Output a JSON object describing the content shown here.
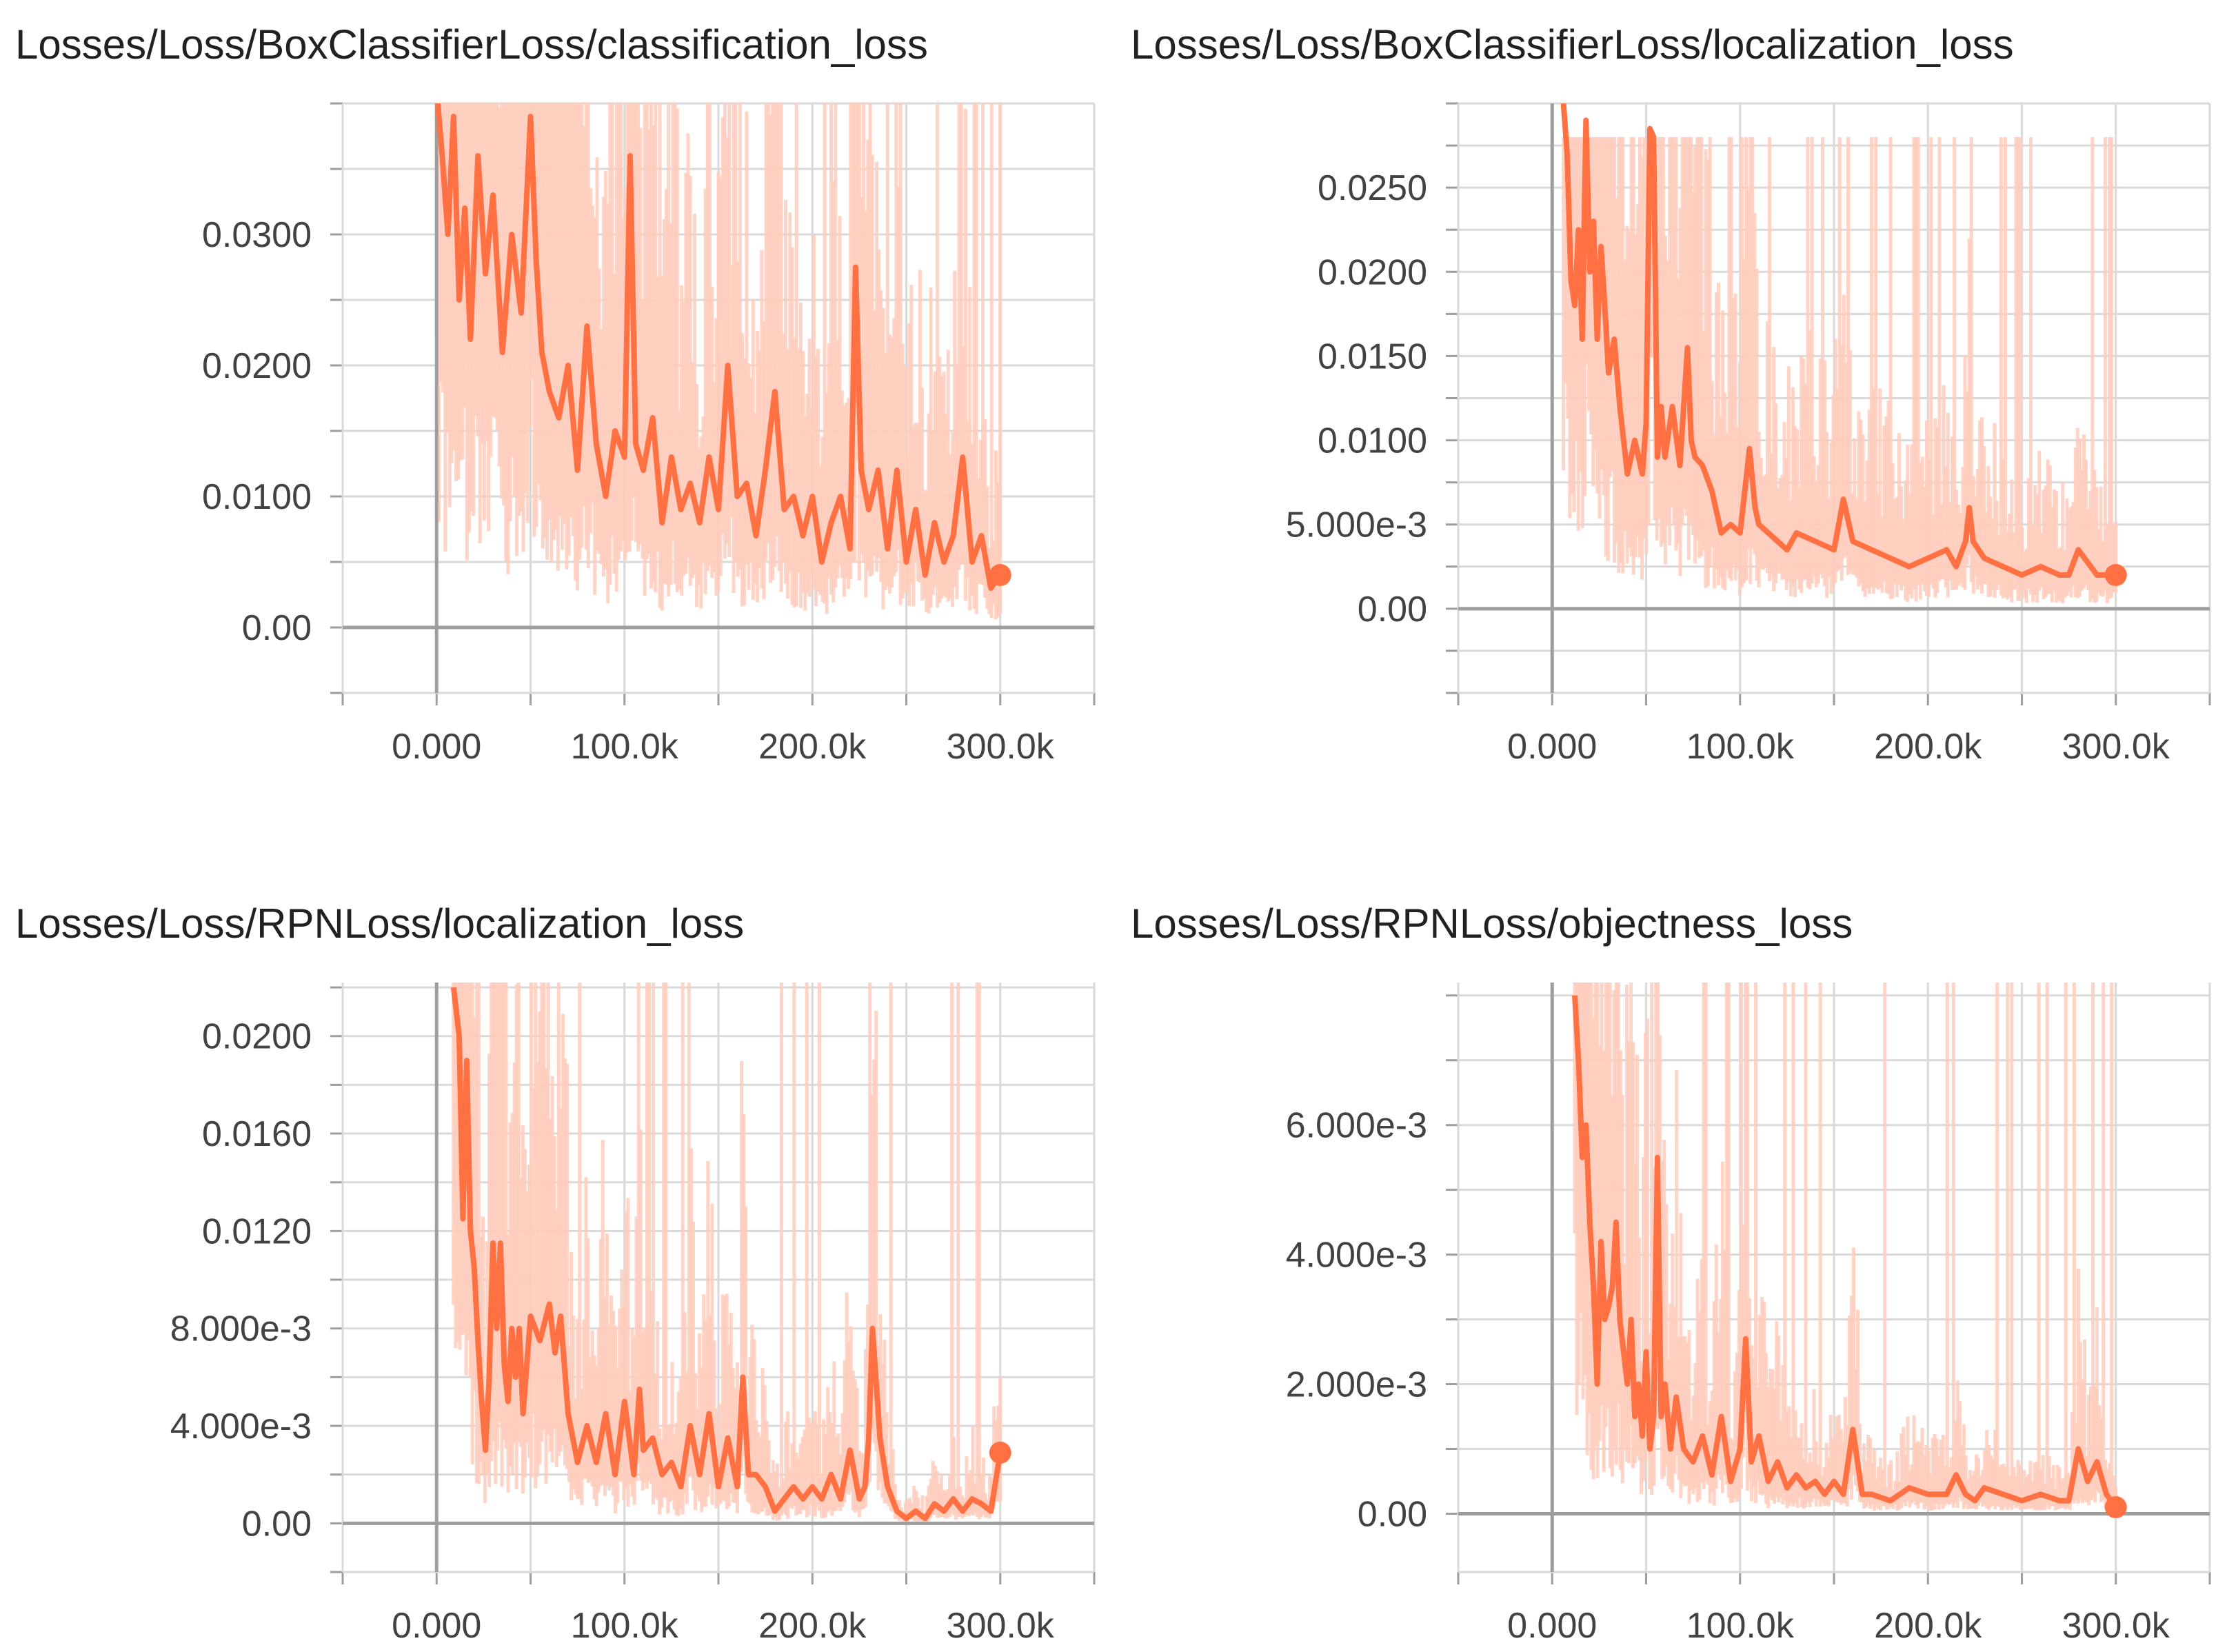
{
  "chart_data": [
    {
      "type": "line",
      "title": "Losses/Loss/BoxClassifierLoss/classification_loss",
      "xlabel": "",
      "ylabel": "",
      "xlim": [
        -50000,
        350000
      ],
      "ylim": [
        -0.005,
        0.04
      ],
      "x_ticks": [
        0,
        100000,
        200000,
        300000
      ],
      "x_tick_labels": [
        "0.000",
        "100.0k",
        "200.0k",
        "300.0k"
      ],
      "y_ticks": [
        0,
        0.01,
        0.02,
        0.03
      ],
      "y_tick_labels": [
        "0.00",
        "0.0100",
        "0.0200",
        "0.0300"
      ],
      "smoothed_series": {
        "x": [
          0,
          3000,
          6000,
          9000,
          12000,
          15000,
          18000,
          22000,
          26000,
          30000,
          35000,
          40000,
          45000,
          50000,
          53000,
          56000,
          60000,
          65000,
          70000,
          75000,
          80000,
          85000,
          90000,
          95000,
          100000,
          103000,
          106000,
          110000,
          115000,
          120000,
          125000,
          130000,
          135000,
          140000,
          145000,
          150000,
          155000,
          160000,
          165000,
          170000,
          175000,
          180000,
          185000,
          190000,
          195000,
          200000,
          205000,
          210000,
          215000,
          220000,
          223000,
          226000,
          230000,
          235000,
          240000,
          245000,
          250000,
          255000,
          260000,
          265000,
          270000,
          275000,
          280000,
          285000,
          290000,
          295000,
          300000
        ],
        "y": [
          0.041,
          0.036,
          0.03,
          0.039,
          0.025,
          0.032,
          0.022,
          0.036,
          0.027,
          0.033,
          0.021,
          0.03,
          0.024,
          0.039,
          0.028,
          0.021,
          0.018,
          0.016,
          0.02,
          0.012,
          0.023,
          0.014,
          0.01,
          0.015,
          0.013,
          0.036,
          0.014,
          0.012,
          0.016,
          0.008,
          0.013,
          0.009,
          0.011,
          0.008,
          0.013,
          0.009,
          0.02,
          0.01,
          0.011,
          0.007,
          0.012,
          0.018,
          0.009,
          0.01,
          0.007,
          0.01,
          0.005,
          0.008,
          0.01,
          0.006,
          0.0275,
          0.012,
          0.009,
          0.012,
          0.006,
          0.012,
          0.005,
          0.009,
          0.004,
          0.008,
          0.005,
          0.007,
          0.013,
          0.005,
          0.007,
          0.003,
          0.004
        ]
      },
      "raw_envelope": {
        "upper": 0.04,
        "lower": 0.0
      }
    },
    {
      "type": "line",
      "title": "Losses/Loss/BoxClassifierLoss/localization_loss",
      "xlabel": "",
      "ylabel": "",
      "xlim": [
        -50000,
        350000
      ],
      "ylim": [
        -0.005,
        0.03
      ],
      "x_ticks": [
        0,
        100000,
        200000,
        300000
      ],
      "x_tick_labels": [
        "0.000",
        "100.0k",
        "200.0k",
        "300.0k"
      ],
      "y_ticks": [
        0,
        0.005,
        0.01,
        0.015,
        0.02,
        0.025
      ],
      "y_tick_labels": [
        "0.00",
        "5.000e-3",
        "0.0100",
        "0.0150",
        "0.0200",
        "0.0250"
      ],
      "smoothed_series": {
        "x": [
          6000,
          8000,
          10000,
          12000,
          14000,
          16000,
          18000,
          20000,
          22000,
          24000,
          26000,
          28000,
          30000,
          33000,
          36000,
          40000,
          44000,
          48000,
          50000,
          52000,
          54000,
          56000,
          58000,
          60000,
          64000,
          68000,
          72000,
          74000,
          76000,
          80000,
          85000,
          90000,
          95000,
          100000,
          105000,
          108000,
          110000,
          115000,
          120000,
          125000,
          130000,
          140000,
          150000,
          155000,
          160000,
          170000,
          180000,
          190000,
          200000,
          210000,
          215000,
          220000,
          222000,
          224000,
          230000,
          240000,
          250000,
          260000,
          270000,
          275000,
          280000,
          290000,
          300000
        ],
        "y": [
          0.03,
          0.027,
          0.0195,
          0.018,
          0.0225,
          0.016,
          0.029,
          0.02,
          0.023,
          0.016,
          0.0215,
          0.018,
          0.014,
          0.016,
          0.012,
          0.008,
          0.01,
          0.008,
          0.011,
          0.0285,
          0.028,
          0.009,
          0.012,
          0.009,
          0.012,
          0.0085,
          0.0155,
          0.01,
          0.009,
          0.0085,
          0.007,
          0.0045,
          0.005,
          0.0045,
          0.0095,
          0.006,
          0.005,
          0.0045,
          0.004,
          0.0035,
          0.0045,
          0.004,
          0.0035,
          0.0065,
          0.004,
          0.0035,
          0.003,
          0.0025,
          0.003,
          0.0035,
          0.0025,
          0.004,
          0.006,
          0.004,
          0.003,
          0.0025,
          0.002,
          0.0025,
          0.002,
          0.002,
          0.0035,
          0.002,
          0.002
        ]
      },
      "raw_envelope": {
        "upper": 0.028,
        "lower": 0.0
      }
    },
    {
      "type": "line",
      "title": "Losses/Loss/RPNLoss/localization_loss",
      "xlabel": "",
      "ylabel": "",
      "xlim": [
        -50000,
        350000
      ],
      "ylim": [
        -0.002,
        0.0222
      ],
      "x_ticks": [
        0,
        100000,
        200000,
        300000
      ],
      "x_tick_labels": [
        "0.000",
        "100.0k",
        "200.0k",
        "300.0k"
      ],
      "y_ticks": [
        0,
        0.004,
        0.008,
        0.012,
        0.016,
        0.02
      ],
      "y_tick_labels": [
        "0.00",
        "4.000e-3",
        "8.000e-3",
        "0.0120",
        "0.0160",
        "0.0200"
      ],
      "smoothed_series": {
        "x": [
          9000,
          12000,
          14000,
          16000,
          18000,
          20000,
          22000,
          24000,
          26000,
          28000,
          30000,
          32000,
          34000,
          36000,
          38000,
          40000,
          42000,
          44000,
          46000,
          50000,
          55000,
          60000,
          63000,
          66000,
          70000,
          75000,
          80000,
          85000,
          90000,
          95000,
          100000,
          105000,
          108000,
          110000,
          115000,
          120000,
          125000,
          130000,
          135000,
          140000,
          145000,
          150000,
          155000,
          160000,
          163000,
          166000,
          170000,
          175000,
          180000,
          185000,
          190000,
          195000,
          200000,
          205000,
          210000,
          215000,
          220000,
          225000,
          228000,
          230000,
          232000,
          236000,
          240000,
          245000,
          250000,
          255000,
          260000,
          265000,
          270000,
          275000,
          280000,
          285000,
          290000,
          295000,
          300000
        ],
        "y": [
          0.022,
          0.02,
          0.0125,
          0.019,
          0.012,
          0.0105,
          0.0075,
          0.005,
          0.003,
          0.006,
          0.0115,
          0.008,
          0.0115,
          0.0065,
          0.005,
          0.008,
          0.006,
          0.008,
          0.0045,
          0.0085,
          0.0075,
          0.009,
          0.007,
          0.0085,
          0.0045,
          0.0025,
          0.004,
          0.0025,
          0.0045,
          0.002,
          0.005,
          0.002,
          0.0055,
          0.003,
          0.0035,
          0.002,
          0.0025,
          0.0015,
          0.004,
          0.002,
          0.0045,
          0.0015,
          0.0035,
          0.0015,
          0.006,
          0.002,
          0.002,
          0.0015,
          0.0005,
          0.001,
          0.0015,
          0.001,
          0.0015,
          0.001,
          0.002,
          0.001,
          0.003,
          0.001,
          0.0015,
          0.0035,
          0.008,
          0.0035,
          0.0015,
          0.0005,
          0.0002,
          0.0005,
          0.0002,
          0.0008,
          0.0005,
          0.001,
          0.0005,
          0.001,
          0.0008,
          0.0005,
          0.0029
        ]
      },
      "raw_envelope": {
        "upper": 0.0222,
        "lower": 0.0
      }
    },
    {
      "type": "line",
      "title": "Losses/Loss/RPNLoss/objectness_loss",
      "xlabel": "",
      "ylabel": "",
      "xlim": [
        -50000,
        350000
      ],
      "ylim": [
        -0.0009,
        0.0082
      ],
      "x_ticks": [
        0,
        100000,
        200000,
        300000
      ],
      "x_tick_labels": [
        "0.000",
        "100.0k",
        "200.0k",
        "300.0k"
      ],
      "y_ticks": [
        0,
        0.002,
        0.004,
        0.006
      ],
      "y_tick_labels": [
        "0.00",
        "2.000e-3",
        "4.000e-3",
        "6.000e-3"
      ],
      "smoothed_series": {
        "x": [
          12000,
          14000,
          16000,
          18000,
          20000,
          22000,
          24000,
          26000,
          28000,
          30000,
          32000,
          34000,
          36000,
          38000,
          40000,
          42000,
          44000,
          46000,
          48000,
          50000,
          52000,
          54000,
          56000,
          58000,
          60000,
          63000,
          66000,
          70000,
          75000,
          80000,
          85000,
          90000,
          95000,
          100000,
          103000,
          106000,
          110000,
          115000,
          120000,
          125000,
          130000,
          135000,
          140000,
          145000,
          150000,
          155000,
          160000,
          165000,
          170000,
          180000,
          190000,
          200000,
          210000,
          215000,
          220000,
          225000,
          230000,
          240000,
          250000,
          260000,
          270000,
          275000,
          280000,
          285000,
          290000,
          295000,
          300000
        ],
        "y": [
          0.008,
          0.007,
          0.0055,
          0.006,
          0.0045,
          0.0035,
          0.002,
          0.0042,
          0.003,
          0.0032,
          0.0035,
          0.0045,
          0.003,
          0.0025,
          0.002,
          0.003,
          0.0015,
          0.002,
          0.0012,
          0.0025,
          0.001,
          0.0015,
          0.0055,
          0.0015,
          0.002,
          0.001,
          0.0018,
          0.001,
          0.0008,
          0.0012,
          0.0006,
          0.0015,
          0.0005,
          0.001,
          0.0027,
          0.0008,
          0.0012,
          0.0005,
          0.0008,
          0.0004,
          0.0006,
          0.0004,
          0.0005,
          0.0003,
          0.0005,
          0.0003,
          0.0013,
          0.0003,
          0.0003,
          0.0002,
          0.0004,
          0.0003,
          0.0003,
          0.0006,
          0.0003,
          0.0002,
          0.0004,
          0.0003,
          0.0002,
          0.0003,
          0.0002,
          0.0002,
          0.001,
          0.0005,
          0.0008,
          0.0003,
          0.0001
        ]
      },
      "raw_envelope": {
        "upper": 0.0082,
        "lower": 0.0
      }
    }
  ],
  "colors": {
    "smoothed_line": "#ff7043",
    "raw_band": "#ffcbbb",
    "grid": "#d9d9d9",
    "axis": "#9e9e9e",
    "text": "#212121",
    "tick_text": "#424242"
  }
}
